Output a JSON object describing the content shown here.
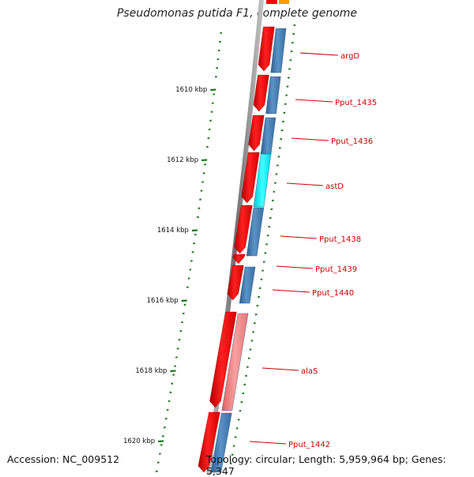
{
  "title": "Pseudomonas putida F1, complete genome",
  "accession": "Accession: NC_009512",
  "topology": "Topology: circular",
  "length": "Length: 5,959,964 bp",
  "genes": "Genes: 5,347",
  "colors": {
    "forward_gene": "#ff0000",
    "reverse_gene": "#4682b4",
    "highlight_gene": "#00ffff",
    "rna_gene": "#f08080",
    "tick": "#1a7a1a",
    "label": "#cc0000",
    "backbone": "#808080"
  },
  "scale_labels": [
    "1610 kbp",
    "1612 kbp",
    "1614 kbp",
    "1616 kbp",
    "1618 kbp",
    "1620 kbp"
  ],
  "gene_labels": [
    "argD",
    "Pput_1435",
    "Pput_1436",
    "astD",
    "Pput_1438",
    "Pput_1439",
    "Pput_1440",
    "alaS",
    "Pput_1442"
  ]
}
